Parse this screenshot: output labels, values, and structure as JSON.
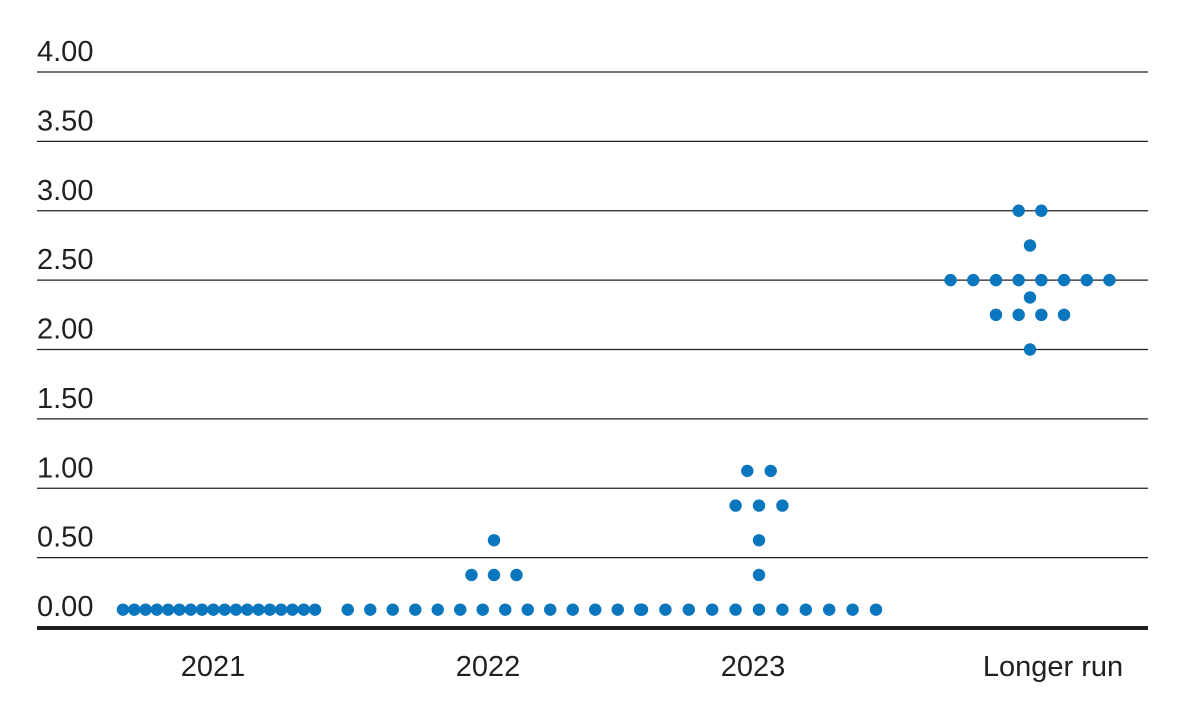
{
  "chart_data": {
    "type": "scatter",
    "title": "",
    "xlabel": "",
    "ylabel": "",
    "categories": [
      "2021",
      "2022",
      "2023",
      "Longer run"
    ],
    "ylim": [
      0,
      4
    ],
    "yticks": [
      "0.00",
      "0.50",
      "1.00",
      "1.50",
      "2.00",
      "2.50",
      "3.00",
      "3.50",
      "4.00"
    ],
    "ytick_values": [
      0,
      0.5,
      1,
      1.5,
      2,
      2.5,
      3,
      3.5,
      4
    ],
    "grid": true,
    "dot_color": "#0a76bd",
    "groups": [
      {
        "category": "2021",
        "levels": [
          {
            "value": 0.125,
            "count": 18
          }
        ]
      },
      {
        "category": "2022",
        "levels": [
          {
            "value": 0.125,
            "count": 14
          },
          {
            "value": 0.375,
            "count": 3
          },
          {
            "value": 0.625,
            "count": 1
          }
        ]
      },
      {
        "category": "2023",
        "levels": [
          {
            "value": 0.125,
            "count": 11
          },
          {
            "value": 0.375,
            "count": 1
          },
          {
            "value": 0.625,
            "count": 1
          },
          {
            "value": 0.875,
            "count": 3
          },
          {
            "value": 1.125,
            "count": 2
          }
        ]
      },
      {
        "category": "Longer run",
        "levels": [
          {
            "value": 2.0,
            "count": 1
          },
          {
            "value": 2.25,
            "count": 4
          },
          {
            "value": 2.375,
            "count": 1
          },
          {
            "value": 2.5,
            "count": 8
          },
          {
            "value": 2.75,
            "count": 1
          },
          {
            "value": 3.0,
            "count": 2
          }
        ]
      }
    ]
  }
}
